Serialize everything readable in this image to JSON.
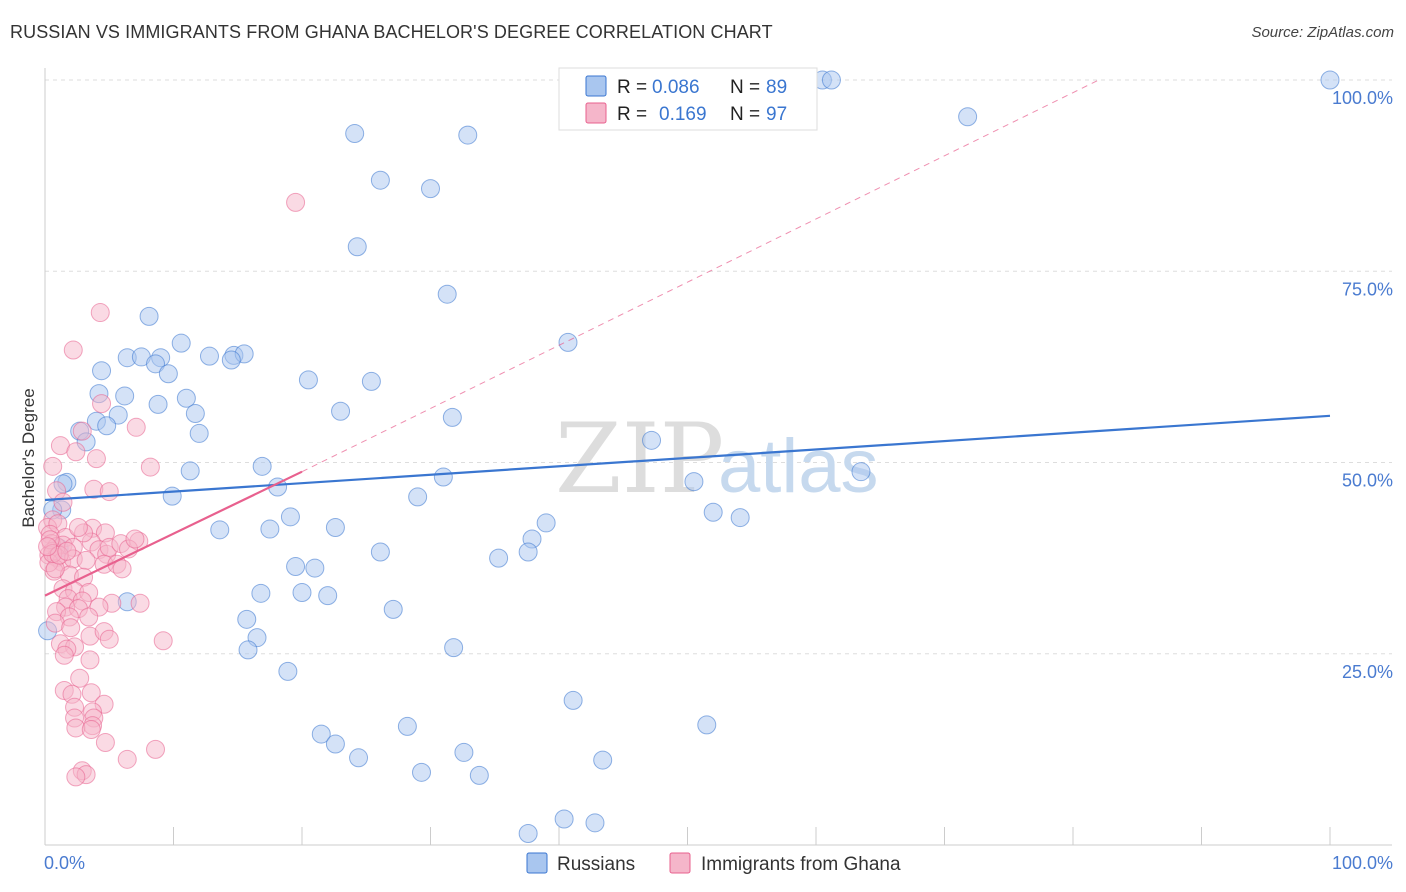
{
  "title": "RUSSIAN VS IMMIGRANTS FROM GHANA BACHELOR'S DEGREE CORRELATION CHART",
  "source": "Source: ZipAtlas.com",
  "watermark": {
    "zip": "ZIP",
    "atlas": "atlas"
  },
  "colors": {
    "blue": "#3a76d0",
    "blue_fill": "#a9c6ef",
    "pink": "#e8608e",
    "pink_fill": "#f5b6ca",
    "grid": "#dddddd",
    "axis": "#cccccc"
  },
  "chart_data": {
    "type": "scatter",
    "xlabel": "",
    "ylabel": "Bachelor's Degree",
    "xlim": [
      0,
      100
    ],
    "ylim": [
      0,
      100
    ],
    "x_tick_labels": {
      "left": "0.0%",
      "right": "100.0%"
    },
    "y_tick_labels": [
      {
        "value": 25,
        "label": "25.0%"
      },
      {
        "value": 50,
        "label": "50.0%"
      },
      {
        "value": 75,
        "label": "75.0%"
      },
      {
        "value": 100,
        "label": "100.0%"
      }
    ],
    "legend": [
      {
        "series": "Russians",
        "r_label": "R =",
        "r": "0.086",
        "n_label": "N =",
        "n": "89"
      },
      {
        "series": "Immigrants from Ghana",
        "r_label": "R =",
        "r": "0.169",
        "n_label": "N =",
        "n": "97"
      }
    ],
    "series": [
      {
        "name": "Russians",
        "color": "#3a76d0",
        "trend": {
          "x": [
            0,
            100
          ],
          "y": [
            45.1,
            56.1
          ]
        },
        "points": [
          [
            60.5,
            100
          ],
          [
            61.2,
            100
          ],
          [
            100,
            100
          ],
          [
            24.1,
            93
          ],
          [
            32.9,
            92.8
          ],
          [
            71.8,
            95.2
          ],
          [
            26.1,
            86.9
          ],
          [
            30.0,
            85.8
          ],
          [
            24.3,
            78.2
          ],
          [
            31.3,
            72.0
          ],
          [
            8.1,
            69.1
          ],
          [
            40.7,
            65.7
          ],
          [
            10.6,
            65.6
          ],
          [
            6.4,
            63.7
          ],
          [
            9.0,
            63.7
          ],
          [
            12.8,
            63.9
          ],
          [
            14.7,
            64.0
          ],
          [
            15.5,
            64.2
          ],
          [
            7.5,
            63.8
          ],
          [
            14.5,
            63.4
          ],
          [
            8.6,
            62.9
          ],
          [
            4.4,
            62.0
          ],
          [
            9.6,
            61.6
          ],
          [
            20.5,
            60.8
          ],
          [
            25.4,
            60.6
          ],
          [
            4.2,
            59.0
          ],
          [
            6.2,
            58.7
          ],
          [
            8.8,
            57.6
          ],
          [
            11.0,
            58.4
          ],
          [
            5.7,
            56.2
          ],
          [
            11.7,
            56.4
          ],
          [
            23.0,
            56.7
          ],
          [
            31.7,
            55.9
          ],
          [
            4.0,
            55.4
          ],
          [
            4.8,
            54.8
          ],
          [
            2.7,
            54.1
          ],
          [
            12.0,
            53.8
          ],
          [
            3.2,
            52.7
          ],
          [
            47.2,
            52.9
          ],
          [
            16.9,
            49.5
          ],
          [
            11.3,
            48.9
          ],
          [
            63.5,
            48.8
          ],
          [
            31.0,
            48.1
          ],
          [
            50.5,
            47.5
          ],
          [
            1.7,
            47.4
          ],
          [
            1.4,
            47.2
          ],
          [
            18.1,
            46.8
          ],
          [
            9.9,
            45.6
          ],
          [
            29.0,
            45.5
          ],
          [
            1.3,
            43.8
          ],
          [
            19.1,
            42.9
          ],
          [
            52.0,
            43.5
          ],
          [
            54.1,
            42.8
          ],
          [
            39.0,
            42.1
          ],
          [
            13.6,
            41.2
          ],
          [
            17.5,
            41.3
          ],
          [
            22.6,
            41.5
          ],
          [
            37.9,
            40.0
          ],
          [
            26.1,
            38.3
          ],
          [
            37.6,
            38.3
          ],
          [
            35.3,
            37.5
          ],
          [
            19.5,
            36.4
          ],
          [
            21.0,
            36.2
          ],
          [
            16.8,
            32.9
          ],
          [
            20.0,
            33.0
          ],
          [
            22.0,
            32.6
          ],
          [
            6.4,
            31.8
          ],
          [
            27.1,
            30.8
          ],
          [
            15.7,
            29.5
          ],
          [
            16.5,
            27.1
          ],
          [
            31.8,
            25.8
          ],
          [
            15.8,
            25.5
          ],
          [
            18.9,
            22.7
          ],
          [
            41.1,
            18.9
          ],
          [
            28.2,
            15.5
          ],
          [
            51.5,
            15.7
          ],
          [
            21.5,
            14.5
          ],
          [
            22.6,
            13.2
          ],
          [
            32.6,
            12.1
          ],
          [
            24.4,
            11.4
          ],
          [
            43.4,
            11.1
          ],
          [
            29.3,
            9.5
          ],
          [
            33.8,
            9.1
          ],
          [
            37.6,
            1.5
          ],
          [
            40.4,
            3.4
          ],
          [
            42.8,
            2.9
          ],
          [
            0.2,
            28.0
          ],
          [
            1.1,
            38.8
          ],
          [
            0.6,
            43.8
          ]
        ]
      },
      {
        "name": "Immigrants from Ghana",
        "color": "#e8608e",
        "trend": {
          "x": [
            0,
            20
          ],
          "y": [
            32.6,
            48.8
          ]
        },
        "trend_extension": {
          "x": [
            20,
            82
          ],
          "y": [
            48.8,
            100
          ]
        },
        "points": [
          [
            19.5,
            84.0
          ],
          [
            4.3,
            69.6
          ],
          [
            2.2,
            64.7
          ],
          [
            4.4,
            57.7
          ],
          [
            2.9,
            54.1
          ],
          [
            7.1,
            54.6
          ],
          [
            1.2,
            52.2
          ],
          [
            2.4,
            51.4
          ],
          [
            4.0,
            50.5
          ],
          [
            8.2,
            49.4
          ],
          [
            0.6,
            49.5
          ],
          [
            3.8,
            46.5
          ],
          [
            5.0,
            46.2
          ],
          [
            0.9,
            46.3
          ],
          [
            1.4,
            44.8
          ],
          [
            0.6,
            42.5
          ],
          [
            0.2,
            41.5
          ],
          [
            1.0,
            42.0
          ],
          [
            3.7,
            41.4
          ],
          [
            4.7,
            40.8
          ],
          [
            0.4,
            40.6
          ],
          [
            1.6,
            40.2
          ],
          [
            7.3,
            39.7
          ],
          [
            0.5,
            39.4
          ],
          [
            0.9,
            39.0
          ],
          [
            0.6,
            38.4
          ],
          [
            1.4,
            39.2
          ],
          [
            2.2,
            38.9
          ],
          [
            3.6,
            39.6
          ],
          [
            4.2,
            38.6
          ],
          [
            4.8,
            38.0
          ],
          [
            5.0,
            38.9
          ],
          [
            0.3,
            37.9
          ],
          [
            0.9,
            37.6
          ],
          [
            1.3,
            37.0
          ],
          [
            2.2,
            37.4
          ],
          [
            3.2,
            37.2
          ],
          [
            4.6,
            36.7
          ],
          [
            0.7,
            35.8
          ],
          [
            1.9,
            35.3
          ],
          [
            3.0,
            35.0
          ],
          [
            1.4,
            33.5
          ],
          [
            2.3,
            33.2
          ],
          [
            3.4,
            33.0
          ],
          [
            1.8,
            32.2
          ],
          [
            2.9,
            31.9
          ],
          [
            5.2,
            31.6
          ],
          [
            7.4,
            31.6
          ],
          [
            1.6,
            31.1
          ],
          [
            2.6,
            30.9
          ],
          [
            4.2,
            31.1
          ],
          [
            0.9,
            30.5
          ],
          [
            1.9,
            29.8
          ],
          [
            3.4,
            29.8
          ],
          [
            0.8,
            29.0
          ],
          [
            2.0,
            28.4
          ],
          [
            3.5,
            27.3
          ],
          [
            4.6,
            27.9
          ],
          [
            5.0,
            26.9
          ],
          [
            9.2,
            26.7
          ],
          [
            1.2,
            26.3
          ],
          [
            2.3,
            25.9
          ],
          [
            1.7,
            25.6
          ],
          [
            3.5,
            24.2
          ],
          [
            1.5,
            24.8
          ],
          [
            2.7,
            21.8
          ],
          [
            1.5,
            20.2
          ],
          [
            2.1,
            19.7
          ],
          [
            3.6,
            19.9
          ],
          [
            4.6,
            18.4
          ],
          [
            2.3,
            18.0
          ],
          [
            3.7,
            17.4
          ],
          [
            2.3,
            16.6
          ],
          [
            3.8,
            16.6
          ],
          [
            3.7,
            15.6
          ],
          [
            2.4,
            15.3
          ],
          [
            3.6,
            15.1
          ],
          [
            4.7,
            13.4
          ],
          [
            8.6,
            12.5
          ],
          [
            6.4,
            11.2
          ],
          [
            2.9,
            9.7
          ],
          [
            3.2,
            9.2
          ],
          [
            2.4,
            8.9
          ],
          [
            0.3,
            36.9
          ],
          [
            0.8,
            36.1
          ],
          [
            5.6,
            36.7
          ],
          [
            6.0,
            36.1
          ],
          [
            0.4,
            39.9
          ],
          [
            0.6,
            38.1
          ],
          [
            1.1,
            37.9
          ],
          [
            0.2,
            39.0
          ],
          [
            1.7,
            38.4
          ],
          [
            3.0,
            40.8
          ],
          [
            2.6,
            41.5
          ],
          [
            5.9,
            39.4
          ],
          [
            6.5,
            38.7
          ],
          [
            7.0,
            40.0
          ]
        ]
      }
    ]
  }
}
